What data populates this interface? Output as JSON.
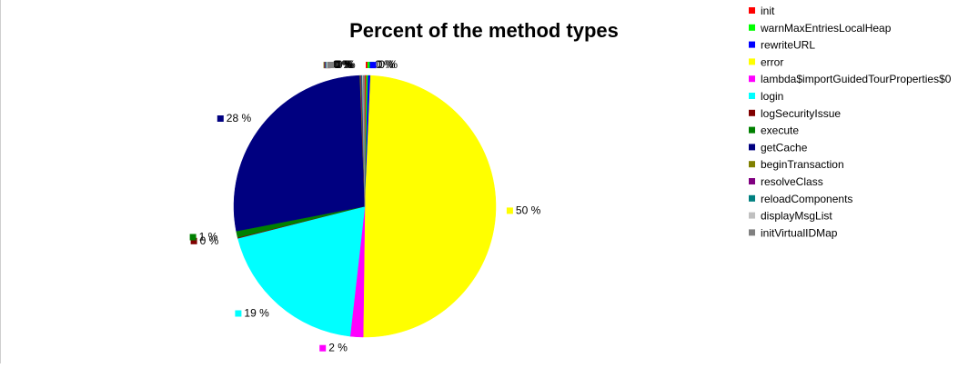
{
  "chart_data": {
    "type": "pie",
    "title": "Percent of the method types",
    "legend_position": "right",
    "slices": [
      {
        "name": "init",
        "value": 0.2,
        "label": "0 %",
        "color": "#ff0000"
      },
      {
        "name": "warnMaxEntriesLocalHeap",
        "value": 0.2,
        "label": "0 %",
        "color": "#00ff00"
      },
      {
        "name": "rewriteURL",
        "value": 0.3,
        "label": "0 %",
        "color": "#0000ff"
      },
      {
        "name": "error",
        "value": 49.6,
        "label": "50 %",
        "color": "#ffff00"
      },
      {
        "name": "lambda$importGuidedTourProperties$0",
        "value": 1.6,
        "label": "2 %",
        "color": "#ff00ff"
      },
      {
        "name": "login",
        "value": 19.3,
        "label": "19 %",
        "color": "#00ffff"
      },
      {
        "name": "logSecurityIssue",
        "value": 0.1,
        "label": "0 %",
        "color": "#800000"
      },
      {
        "name": "execute",
        "value": 0.8,
        "label": "1 %",
        "color": "#008000"
      },
      {
        "name": "getCache",
        "value": 27.5,
        "label": "28 %",
        "color": "#000080"
      },
      {
        "name": "beginTransaction",
        "value": 0.1,
        "label": "0 %",
        "color": "#808000"
      },
      {
        "name": "resolveClass",
        "value": 0.1,
        "label": "0 %",
        "color": "#800080"
      },
      {
        "name": "reloadComponents",
        "value": 0.1,
        "label": "0 %",
        "color": "#008080"
      },
      {
        "name": "displayMsgList",
        "value": 0.1,
        "label": "0 %",
        "color": "#c0c0c0"
      },
      {
        "name": "initVirtualIDMap",
        "value": 0.2,
        "label": "0 %",
        "color": "#808080"
      }
    ]
  }
}
